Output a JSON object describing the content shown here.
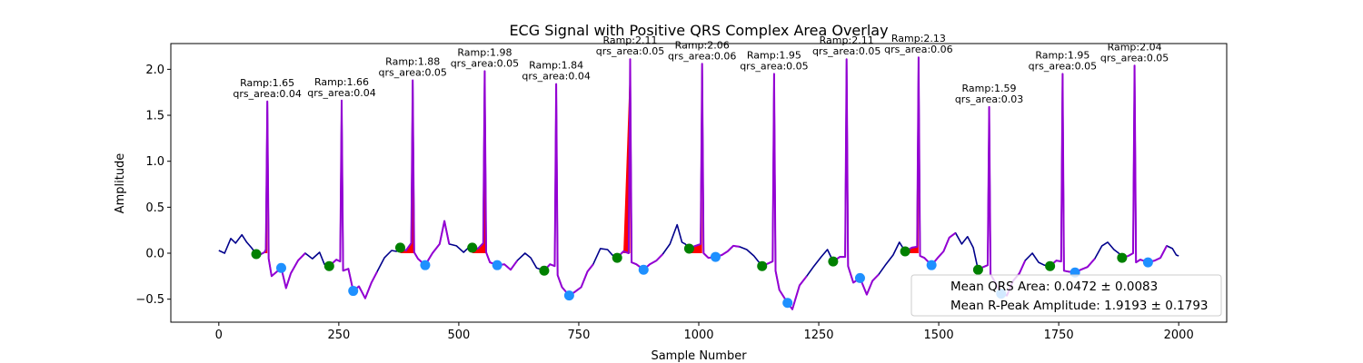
{
  "chart_data": {
    "type": "line",
    "title": "ECG Signal with Positive QRS Complex Area Overlay",
    "xlabel": "Sample Number",
    "ylabel": "Amplitude",
    "xlim": [
      -100,
      2100
    ],
    "ylim": [
      -0.75,
      2.28
    ],
    "x_ticks": [
      0,
      250,
      500,
      750,
      1000,
      1250,
      1500,
      1750,
      2000
    ],
    "y_ticks": [
      -0.5,
      0.0,
      0.5,
      1.0,
      1.5,
      2.0
    ],
    "y_tick_labels": [
      "−0.5",
      "0.0",
      "0.5",
      "1.0",
      "1.5",
      "2.0"
    ],
    "colors": {
      "signal": "#00008b",
      "qrs_segment": "#9400d3",
      "qrs_area_fill": "#ff0000",
      "q_marker": "#008000",
      "s_marker": "#1e90ff"
    },
    "beats": [
      {
        "q_x": 78,
        "q_y": -0.01,
        "r_x": 101,
        "r_amp": 1.65,
        "s_x": 130,
        "s_y": -0.16,
        "label_amp": "Ramp:1.65",
        "label_area": "qrs_area:0.04"
      },
      {
        "q_x": 230,
        "q_y": -0.14,
        "r_x": 256,
        "r_amp": 1.66,
        "s_x": 280,
        "s_y": -0.41,
        "label_amp": "Ramp:1.66",
        "label_area": "qrs_area:0.04"
      },
      {
        "q_x": 378,
        "q_y": 0.06,
        "r_x": 404,
        "r_amp": 1.88,
        "s_x": 430,
        "s_y": -0.13,
        "label_amp": "Ramp:1.88",
        "label_area": "qrs_area:0.05"
      },
      {
        "q_x": 528,
        "q_y": 0.06,
        "r_x": 554,
        "r_amp": 1.98,
        "s_x": 580,
        "s_y": -0.13,
        "label_amp": "Ramp:1.98",
        "label_area": "qrs_area:0.05"
      },
      {
        "q_x": 678,
        "q_y": -0.19,
        "r_x": 703,
        "r_amp": 1.84,
        "s_x": 730,
        "s_y": -0.46,
        "label_amp": "Ramp:1.84",
        "label_area": "qrs_area:0.04"
      },
      {
        "q_x": 830,
        "q_y": -0.05,
        "r_x": 857,
        "r_amp": 2.11,
        "s_x": 885,
        "s_y": -0.18,
        "label_amp": "Ramp:2.11",
        "label_area": "qrs_area:0.05"
      },
      {
        "q_x": 980,
        "q_y": 0.05,
        "r_x": 1007,
        "r_amp": 2.06,
        "s_x": 1035,
        "s_y": -0.04,
        "label_amp": "Ramp:2.06",
        "label_area": "qrs_area:0.06"
      },
      {
        "q_x": 1132,
        "q_y": -0.14,
        "r_x": 1157,
        "r_amp": 1.95,
        "s_x": 1185,
        "s_y": -0.54,
        "label_amp": "Ramp:1.95",
        "label_area": "qrs_area:0.05"
      },
      {
        "q_x": 1280,
        "q_y": -0.09,
        "r_x": 1308,
        "r_amp": 2.11,
        "s_x": 1336,
        "s_y": -0.27,
        "label_amp": "Ramp:2.11",
        "label_area": "qrs_area:0.05"
      },
      {
        "q_x": 1430,
        "q_y": 0.02,
        "r_x": 1458,
        "r_amp": 2.13,
        "s_x": 1485,
        "s_y": -0.13,
        "label_amp": "Ramp:2.13",
        "label_area": "qrs_area:0.06"
      },
      {
        "q_x": 1582,
        "q_y": -0.18,
        "r_x": 1605,
        "r_amp": 1.59,
        "s_x": 1630,
        "s_y": -0.44,
        "label_amp": "Ramp:1.59",
        "label_area": "qrs_area:0.03"
      },
      {
        "q_x": 1732,
        "q_y": -0.14,
        "r_x": 1758,
        "r_amp": 1.95,
        "s_x": 1784,
        "s_y": -0.21,
        "label_amp": "Ramp:1.95",
        "label_area": "qrs_area:0.05"
      },
      {
        "q_x": 1882,
        "q_y": -0.05,
        "r_x": 1908,
        "r_amp": 2.04,
        "s_x": 1936,
        "s_y": -0.1,
        "label_amp": "Ramp:2.04",
        "label_area": "qrs_area:0.05"
      }
    ],
    "baseline": [
      [
        0,
        0.03
      ],
      [
        12,
        0.0
      ],
      [
        25,
        0.16
      ],
      [
        35,
        0.11
      ],
      [
        48,
        0.2
      ],
      [
        58,
        0.12
      ],
      [
        68,
        0.06
      ],
      [
        78,
        -0.01
      ],
      [
        88,
        -0.01
      ],
      [
        95,
        0.01
      ],
      [
        110,
        -0.25
      ],
      [
        130,
        -0.16
      ],
      [
        140,
        -0.38
      ],
      [
        150,
        -0.22
      ],
      [
        165,
        -0.08
      ],
      [
        180,
        0.0
      ],
      [
        195,
        -0.06
      ],
      [
        210,
        0.01
      ],
      [
        220,
        -0.12
      ],
      [
        230,
        -0.14
      ],
      [
        245,
        -0.07
      ],
      [
        270,
        -0.17
      ],
      [
        280,
        -0.41
      ],
      [
        292,
        -0.36
      ],
      [
        305,
        -0.49
      ],
      [
        318,
        -0.32
      ],
      [
        330,
        -0.2
      ],
      [
        345,
        -0.05
      ],
      [
        360,
        0.03
      ],
      [
        370,
        0.02
      ],
      [
        378,
        0.06
      ],
      [
        390,
        0.03
      ],
      [
        415,
        -0.06
      ],
      [
        430,
        -0.13
      ],
      [
        445,
        0.0
      ],
      [
        460,
        0.1
      ],
      [
        470,
        0.35
      ],
      [
        480,
        0.1
      ],
      [
        495,
        0.08
      ],
      [
        510,
        0.01
      ],
      [
        520,
        0.06
      ],
      [
        528,
        0.06
      ],
      [
        540,
        0.05
      ],
      [
        565,
        -0.1
      ],
      [
        580,
        -0.13
      ],
      [
        595,
        -0.12
      ],
      [
        608,
        -0.18
      ],
      [
        622,
        -0.08
      ],
      [
        638,
        0.0
      ],
      [
        650,
        -0.05
      ],
      [
        662,
        -0.16
      ],
      [
        678,
        -0.19
      ],
      [
        690,
        -0.12
      ],
      [
        715,
        -0.37
      ],
      [
        730,
        -0.46
      ],
      [
        742,
        -0.42
      ],
      [
        755,
        -0.37
      ],
      [
        768,
        -0.2
      ],
      [
        780,
        -0.12
      ],
      [
        795,
        0.05
      ],
      [
        810,
        0.04
      ],
      [
        820,
        -0.02
      ],
      [
        830,
        -0.05
      ],
      [
        843,
        0.02
      ],
      [
        870,
        -0.12
      ],
      [
        885,
        -0.18
      ],
      [
        898,
        -0.12
      ],
      [
        912,
        -0.08
      ],
      [
        925,
        -0.01
      ],
      [
        940,
        0.1
      ],
      [
        955,
        0.31
      ],
      [
        965,
        0.12
      ],
      [
        972,
        0.1
      ],
      [
        980,
        0.05
      ],
      [
        993,
        0.08
      ],
      [
        1020,
        -0.05
      ],
      [
        1035,
        -0.04
      ],
      [
        1048,
        -0.02
      ],
      [
        1060,
        0.02
      ],
      [
        1072,
        0.08
      ],
      [
        1085,
        0.07
      ],
      [
        1100,
        0.04
      ],
      [
        1115,
        -0.03
      ],
      [
        1132,
        -0.14
      ],
      [
        1145,
        -0.11
      ],
      [
        1168,
        -0.4
      ],
      [
        1185,
        -0.54
      ],
      [
        1195,
        -0.61
      ],
      [
        1210,
        -0.35
      ],
      [
        1225,
        -0.25
      ],
      [
        1240,
        -0.14
      ],
      [
        1255,
        -0.04
      ],
      [
        1268,
        0.04
      ],
      [
        1280,
        -0.09
      ],
      [
        1294,
        -0.04
      ],
      [
        1322,
        -0.32
      ],
      [
        1336,
        -0.27
      ],
      [
        1350,
        -0.45
      ],
      [
        1362,
        -0.3
      ],
      [
        1375,
        -0.23
      ],
      [
        1390,
        -0.12
      ],
      [
        1405,
        -0.02
      ],
      [
        1418,
        0.12
      ],
      [
        1430,
        0.02
      ],
      [
        1444,
        0.06
      ],
      [
        1470,
        -0.05
      ],
      [
        1485,
        -0.13
      ],
      [
        1498,
        -0.05
      ],
      [
        1510,
        0.02
      ],
      [
        1522,
        0.17
      ],
      [
        1535,
        0.22
      ],
      [
        1548,
        0.1
      ],
      [
        1560,
        0.18
      ],
      [
        1572,
        0.06
      ],
      [
        1582,
        -0.18
      ],
      [
        1593,
        -0.15
      ],
      [
        1618,
        -0.32
      ],
      [
        1630,
        -0.44
      ],
      [
        1642,
        -0.46
      ],
      [
        1655,
        -0.3
      ],
      [
        1668,
        -0.22
      ],
      [
        1680,
        -0.08
      ],
      [
        1695,
        0.0
      ],
      [
        1708,
        -0.1
      ],
      [
        1720,
        -0.13
      ],
      [
        1732,
        -0.14
      ],
      [
        1745,
        -0.08
      ],
      [
        1770,
        -0.2
      ],
      [
        1784,
        -0.21
      ],
      [
        1796,
        -0.18
      ],
      [
        1810,
        -0.15
      ],
      [
        1825,
        -0.06
      ],
      [
        1840,
        0.08
      ],
      [
        1852,
        0.12
      ],
      [
        1865,
        0.04
      ],
      [
        1875,
        0.0
      ],
      [
        1882,
        -0.05
      ],
      [
        1895,
        -0.03
      ],
      [
        1920,
        -0.07
      ],
      [
        1936,
        -0.1
      ],
      [
        1950,
        -0.08
      ],
      [
        1962,
        -0.05
      ],
      [
        1975,
        0.08
      ],
      [
        1987,
        0.05
      ],
      [
        1995,
        -0.02
      ],
      [
        2000,
        -0.03
      ]
    ],
    "legend": {
      "placement": "lower-right",
      "entries": [
        "Mean QRS Area: 0.0472 ± 0.0083",
        "Mean R-Peak Amplitude: 1.9193 ± 0.1793"
      ]
    }
  }
}
